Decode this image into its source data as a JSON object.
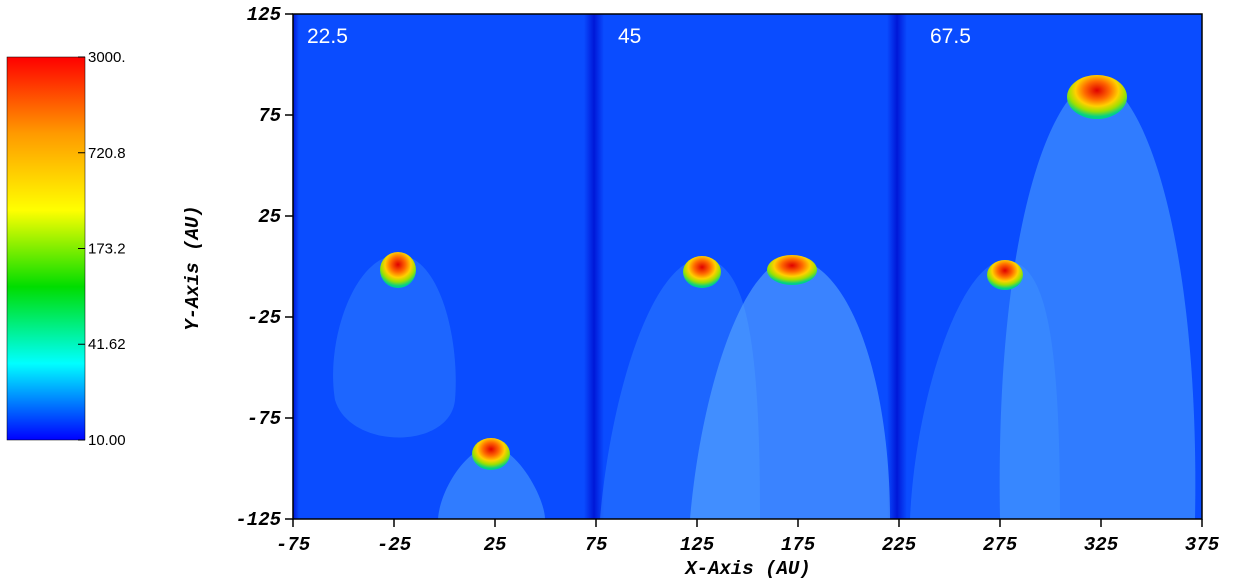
{
  "chart_data": {
    "type": "heatmap",
    "x_label": "X-Axis (AU)",
    "y_label": "Y-Axis (AU)",
    "xlim": [
      -75,
      375
    ],
    "xticks": [
      -75,
      -25,
      25,
      75,
      125,
      175,
      225,
      275,
      325,
      375
    ],
    "ylim": [
      -125,
      125
    ],
    "yticks": [
      -125,
      -75,
      -25,
      25,
      75,
      125
    ],
    "annotations": [
      "22.5",
      "45",
      "67.5"
    ],
    "colorbar": {
      "scale": "log",
      "lim": [
        10,
        3000
      ],
      "ticks": [
        {
          "value": 3000,
          "label": "3000."
        },
        720.8,
        173.2,
        41.62,
        {
          "value": 10,
          "label": "10.00"
        }
      ],
      "colors": [
        "#ff0000",
        "#ff9a00",
        "#ffff00",
        "#00dd00",
        "#00ffff",
        "#0000ff"
      ]
    }
  }
}
